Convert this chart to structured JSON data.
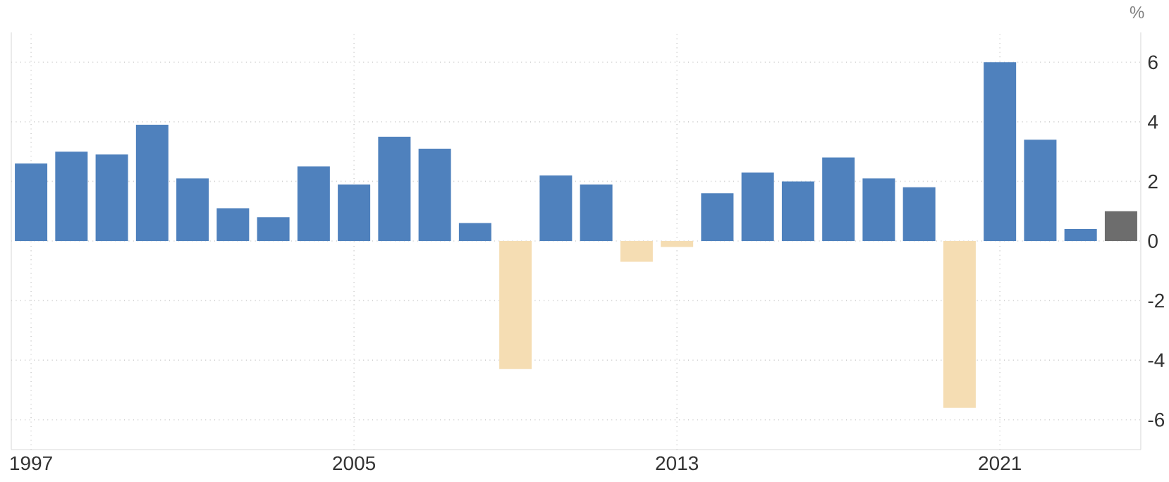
{
  "chart_data": {
    "type": "bar",
    "categories": [
      "1997",
      null,
      null,
      null,
      null,
      null,
      null,
      null,
      "2005",
      null,
      null,
      null,
      null,
      null,
      null,
      null,
      "2013",
      null,
      null,
      null,
      null,
      null,
      null,
      null,
      "2021",
      null,
      null,
      null
    ],
    "values": [
      2.6,
      3.0,
      2.9,
      3.9,
      2.1,
      1.1,
      0.8,
      2.5,
      1.9,
      3.5,
      3.1,
      0.6,
      -4.3,
      2.2,
      1.9,
      -0.7,
      -0.2,
      1.6,
      2.3,
      2.0,
      2.8,
      2.1,
      1.8,
      -5.6,
      6.0,
      3.4,
      0.4,
      1.0
    ],
    "colors": [
      "#4f81bd",
      "#4f81bd",
      "#4f81bd",
      "#4f81bd",
      "#4f81bd",
      "#4f81bd",
      "#4f81bd",
      "#4f81bd",
      "#4f81bd",
      "#4f81bd",
      "#4f81bd",
      "#4f81bd",
      "#f5ddb3",
      "#4f81bd",
      "#4f81bd",
      "#f5ddb3",
      "#f5ddb3",
      "#4f81bd",
      "#4f81bd",
      "#4f81bd",
      "#4f81bd",
      "#4f81bd",
      "#4f81bd",
      "#f5ddb3",
      "#4f81bd",
      "#4f81bd",
      "#4f81bd",
      "#6d6d6d"
    ],
    "ylabel": "%",
    "ylim": [
      -7,
      7
    ],
    "yticks": [
      -6,
      -4,
      -2,
      0,
      2,
      4,
      6
    ],
    "grid": true
  }
}
